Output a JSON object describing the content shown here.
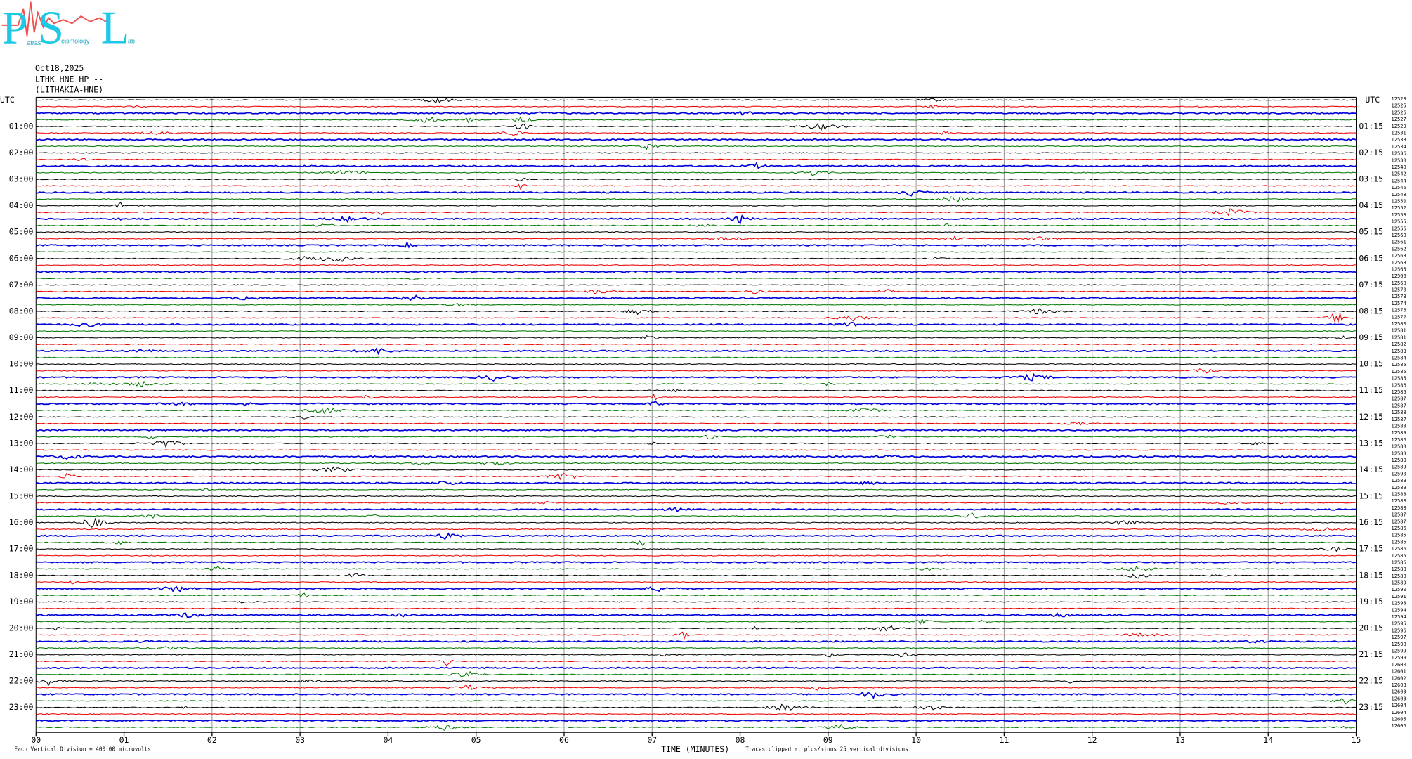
{
  "logo": {
    "letters": [
      "P",
      "S",
      "L"
    ],
    "words": [
      "atras",
      "eismology",
      "ab"
    ]
  },
  "header": {
    "date": "Oct18,2025",
    "station": "LTHK HNE HP --",
    "location": "(LITHAKIA-HNE)"
  },
  "left_utc": "UTC",
  "right_utc": "UTC",
  "left_labels": [
    "01:00",
    "02:00",
    "03:00",
    "04:00",
    "05:00",
    "06:00",
    "07:00",
    "08:00",
    "09:00",
    "10:00",
    "11:00",
    "12:00",
    "13:00",
    "14:00",
    "15:00",
    "16:00",
    "17:00",
    "18:00",
    "19:00",
    "20:00",
    "21:00",
    "22:00",
    "23:00"
  ],
  "right_labels": [
    "01:15",
    "02:15",
    "03:15",
    "04:15",
    "05:15",
    "06:15",
    "07:15",
    "08:15",
    "09:15",
    "10:15",
    "11:15",
    "12:15",
    "13:15",
    "14:15",
    "15:15",
    "16:15",
    "17:15",
    "18:15",
    "19:15",
    "20:15",
    "21:15",
    "22:15",
    "23:15"
  ],
  "counts": [
    "12523",
    "12525",
    "12526",
    "12527",
    "12529",
    "12531",
    "12533",
    "12534",
    "12536",
    "12538",
    "12540",
    "12542",
    "12544",
    "12546",
    "12548",
    "12550",
    "12552",
    "12553",
    "12555",
    "12556",
    "12560",
    "12561",
    "12562",
    "12563",
    "12563",
    "12565",
    "12566",
    "12568",
    "12570",
    "12573",
    "12574",
    "12576",
    "12577",
    "12580",
    "12581",
    "12581",
    "12582",
    "12583",
    "12584",
    "12585",
    "12585",
    "12585",
    "12586",
    "12585",
    "12587",
    "12587",
    "12588",
    "12587",
    "12588",
    "12589",
    "12586",
    "12588",
    "12588",
    "12589",
    "12589",
    "12590",
    "12589",
    "12589",
    "12588",
    "12588",
    "12588",
    "12587",
    "12587",
    "12586",
    "12585",
    "12585",
    "12586",
    "12585",
    "12586",
    "12588",
    "12588",
    "12589",
    "12590",
    "12591",
    "12593",
    "12594",
    "12594",
    "12595",
    "12596",
    "12597",
    "12598",
    "12599",
    "12599",
    "12600",
    "12601",
    "12602",
    "12603",
    "12603",
    "12603",
    "12604",
    "12604",
    "12605",
    "12606"
  ],
  "x_labels": [
    "00",
    "01",
    "02",
    "03",
    "04",
    "05",
    "06",
    "07",
    "08",
    "09",
    "10",
    "11",
    "12",
    "13",
    "14",
    "15"
  ],
  "x_title": "TIME (MINUTES)",
  "division_note": "Each Vertical Division =  400.00 microvolts",
  "clip_note": "Traces clipped at plus/minus 25 vertical divisions"
}
